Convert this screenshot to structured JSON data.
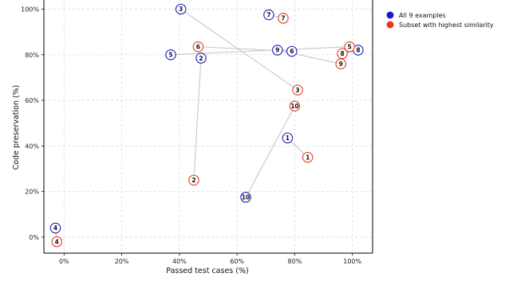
{
  "chart_data": {
    "type": "scatter",
    "xlabel": "Passed test cases (%)",
    "ylabel": "Code preservation (%)",
    "xlim": [
      -7,
      107
    ],
    "ylim": [
      -7,
      104
    ],
    "x_ticks": [
      "0%",
      "20%",
      "40%",
      "60%",
      "80%",
      "100%"
    ],
    "x_tick_values": [
      0,
      20,
      40,
      60,
      80,
      100
    ],
    "y_ticks": [
      "0%",
      "20%",
      "40%",
      "60%",
      "80%",
      "100%"
    ],
    "y_tick_values": [
      0,
      20,
      40,
      60,
      80,
      100
    ],
    "grid": true,
    "legend_position": "outside-top-right",
    "series": [
      {
        "name": "All 9 examples",
        "color": "#1a1acc",
        "points": [
          {
            "id": "1",
            "x": 77.5,
            "y": 43.5
          },
          {
            "id": "2",
            "x": 47.5,
            "y": 78.5
          },
          {
            "id": "3",
            "x": 40.5,
            "y": 100
          },
          {
            "id": "4",
            "x": -3,
            "y": 4
          },
          {
            "id": "5",
            "x": 37,
            "y": 80
          },
          {
            "id": "6",
            "x": 79,
            "y": 81.5
          },
          {
            "id": "7",
            "x": 71,
            "y": 97.5
          },
          {
            "id": "8",
            "x": 102,
            "y": 82
          },
          {
            "id": "9",
            "x": 74,
            "y": 82
          },
          {
            "id": "10",
            "x": 63,
            "y": 17.5
          }
        ]
      },
      {
        "name": "Subset with highest similarity",
        "color": "#e8391c",
        "points": [
          {
            "id": "1",
            "x": 84.5,
            "y": 35
          },
          {
            "id": "2",
            "x": 45,
            "y": 25
          },
          {
            "id": "3",
            "x": 81,
            "y": 64.5
          },
          {
            "id": "4",
            "x": -2.5,
            "y": -2
          },
          {
            "id": "5",
            "x": 99,
            "y": 83.5
          },
          {
            "id": "6",
            "x": 46.5,
            "y": 83.5
          },
          {
            "id": "7",
            "x": 76,
            "y": 96
          },
          {
            "id": "8",
            "x": 96.5,
            "y": 80.5
          },
          {
            "id": "9",
            "x": 96,
            "y": 76
          },
          {
            "id": "10",
            "x": 80,
            "y": 57.5
          }
        ]
      }
    ]
  }
}
